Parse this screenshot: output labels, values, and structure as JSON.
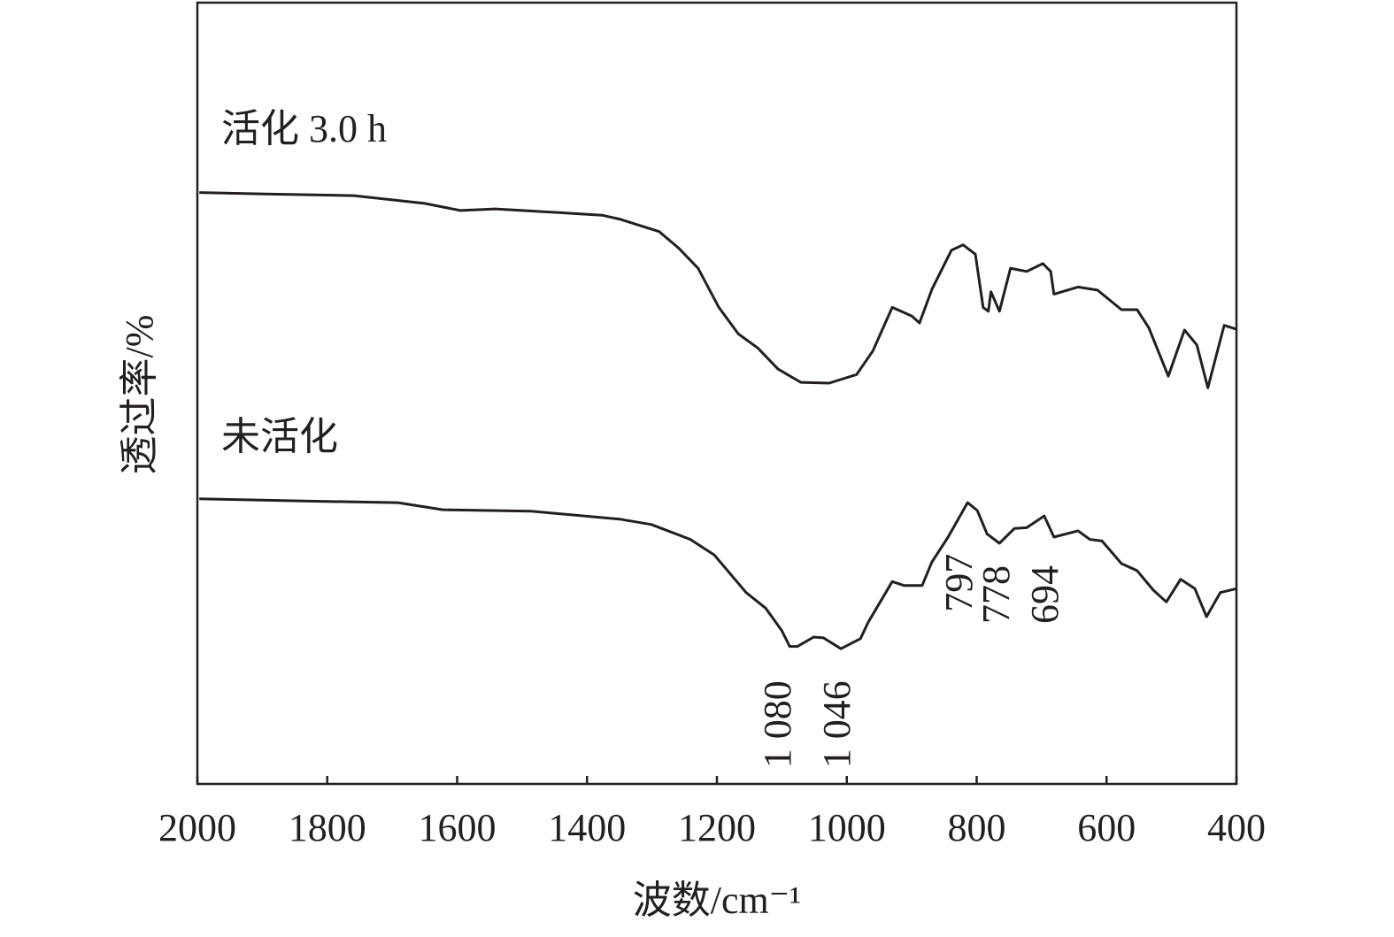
{
  "chart_data": {
    "type": "line",
    "title": "",
    "xlabel": "波数/cm⁻¹",
    "ylabel": "透过率/%",
    "xlim": [
      2000,
      400
    ],
    "ylim": [
      0,
      100
    ],
    "x_reversed": true,
    "grid": false,
    "xticks": [
      2000,
      1800,
      1600,
      1400,
      1200,
      1000,
      800,
      600,
      400
    ],
    "xtick_labels": [
      "2000",
      "1800",
      "1600",
      "1400",
      "1200",
      "1000",
      "800",
      "600",
      "400"
    ],
    "line_color": "#231f20",
    "series": [
      {
        "name": "活化 3.0 h",
        "x": [
          1997,
          1895,
          1759,
          1650,
          1595,
          1541,
          1459,
          1377,
          1350,
          1289,
          1259,
          1229,
          1197,
          1167,
          1137,
          1106,
          1071,
          1027,
          985,
          960,
          930,
          900,
          888,
          869,
          839,
          821,
          802,
          790,
          782,
          778,
          765,
          748,
          723,
          698,
          686,
          681,
          644,
          614,
          577,
          553,
          535,
          505,
          480,
          461,
          444,
          419,
          400
        ],
        "y": [
          75.7,
          75.5,
          75.3,
          74.3,
          73.4,
          73.6,
          73.2,
          72.8,
          72.3,
          70.7,
          68.6,
          66.0,
          61.0,
          57.6,
          55.8,
          53.1,
          51.4,
          51.3,
          52.4,
          55.4,
          61.0,
          59.9,
          59.0,
          63.3,
          68.3,
          69.0,
          67.8,
          61.0,
          60.5,
          63.0,
          60.5,
          66.0,
          65.6,
          66.6,
          65.6,
          62.7,
          63.6,
          63.2,
          60.7,
          60.7,
          58.4,
          52.2,
          58.1,
          56.2,
          50.7,
          58.7,
          58.2
        ]
      },
      {
        "name": "未活化",
        "x": [
          1997,
          1827,
          1691,
          1622,
          1486,
          1350,
          1301,
          1241,
          1204,
          1155,
          1125,
          1100,
          1088,
          1076,
          1051,
          1036,
          1009,
          979,
          967,
          930,
          912,
          884,
          869,
          844,
          814,
          799,
          784,
          765,
          742,
          723,
          696,
          681,
          644,
          626,
          607,
          577,
          553,
          528,
          508,
          486,
          464,
          446,
          425,
          400
        ],
        "y": [
          36.5,
          36.2,
          36.0,
          35.1,
          34.9,
          33.9,
          33.2,
          31.3,
          29.3,
          24.5,
          22.5,
          19.6,
          17.6,
          17.6,
          18.8,
          18.7,
          17.3,
          18.6,
          20.7,
          25.9,
          25.4,
          25.4,
          28.4,
          31.6,
          36.0,
          35.0,
          32.0,
          30.8,
          32.7,
          32.8,
          34.3,
          31.6,
          32.4,
          31.3,
          31.1,
          28.2,
          27.3,
          24.8,
          23.3,
          26.2,
          25.0,
          21.4,
          24.5,
          25.0
        ]
      }
    ],
    "annotations": [
      {
        "text": "1 080",
        "x": 1107,
        "y": 2
      },
      {
        "text": "1 046",
        "x": 1016,
        "y": 2
      },
      {
        "text": "797",
        "x": 828,
        "y": 22
      },
      {
        "text": "778",
        "x": 771,
        "y": 20.5
      },
      {
        "text": "694",
        "x": 696,
        "y": 20.5
      }
    ]
  }
}
